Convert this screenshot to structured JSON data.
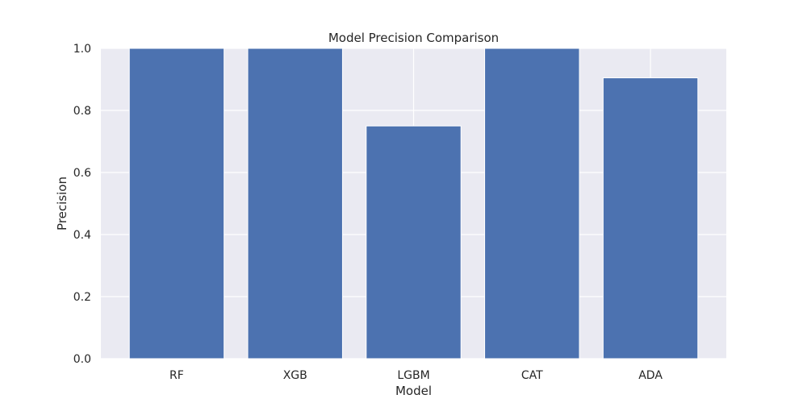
{
  "chart_data": {
    "type": "bar",
    "title": "Model Precision Comparison",
    "xlabel": "Model",
    "ylabel": "Precision",
    "categories": [
      "RF",
      "XGB",
      "LGBM",
      "CAT",
      "ADA"
    ],
    "values": [
      1.0,
      1.0,
      0.75,
      1.0,
      0.905
    ],
    "ylim": [
      0,
      1.0
    ],
    "yticks": [
      "0.0",
      "0.2",
      "0.4",
      "0.6",
      "0.8",
      "1.0"
    ],
    "grid": true,
    "legend": "none",
    "colors": {
      "bar": "#4c72b0",
      "plot_background": "#eaeaf2",
      "grid": "#ffffff",
      "text": "#262626"
    }
  }
}
